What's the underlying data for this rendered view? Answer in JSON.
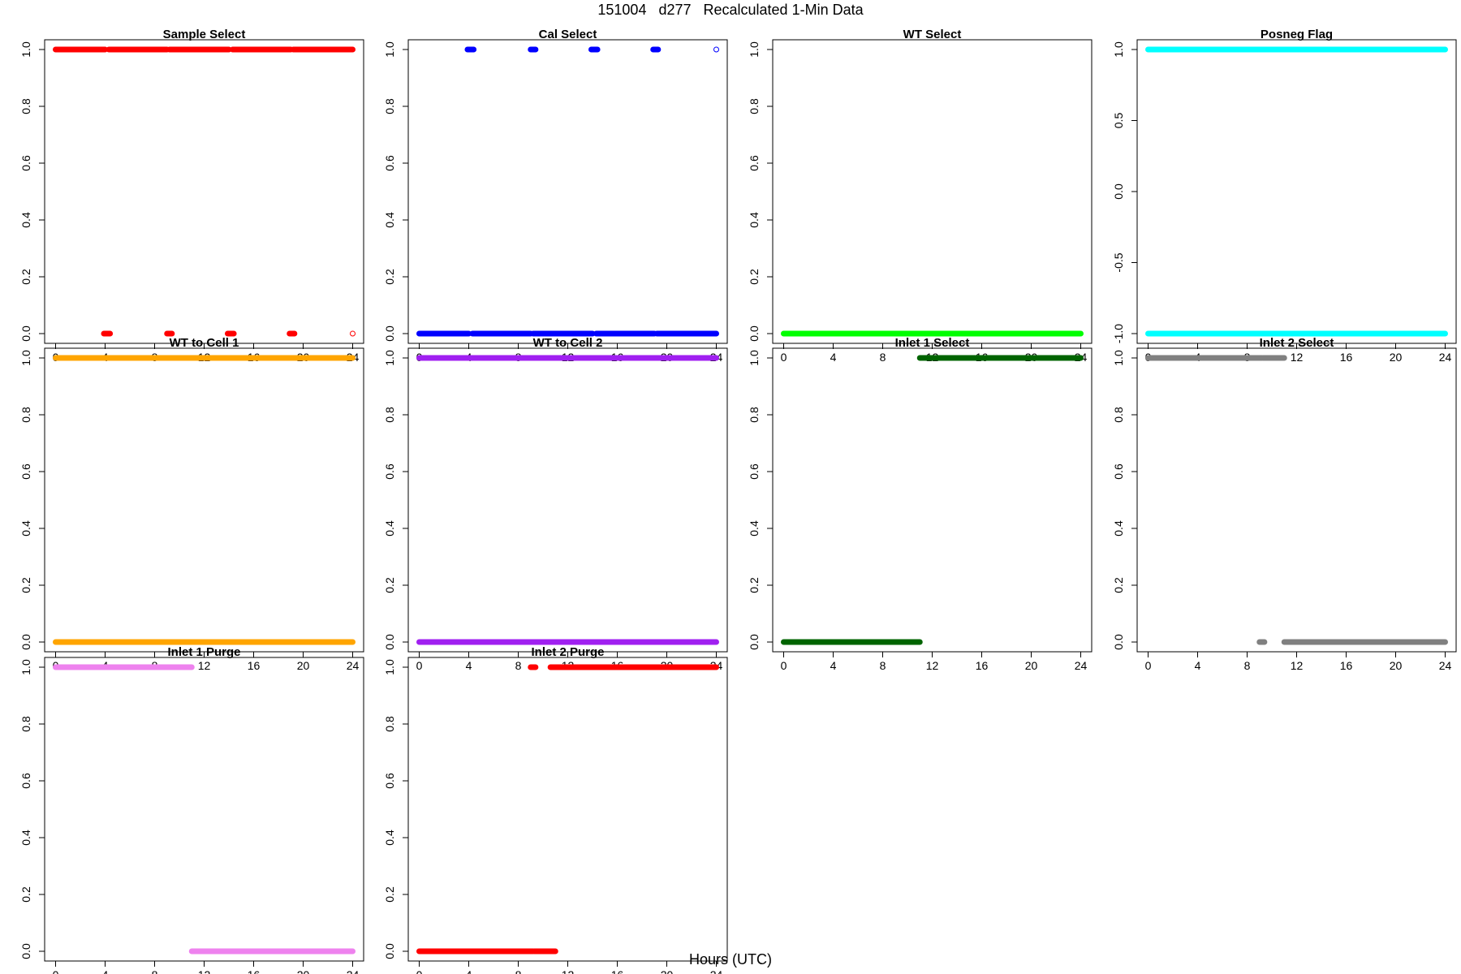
{
  "title": "151004   d277   Recalculated 1-Min Data",
  "xlabel": "Hours (UTC)",
  "chart_data": [
    {
      "type": "scatter",
      "title": "Sample Select",
      "color": "#ff0000",
      "xlim": [
        0,
        24
      ],
      "ylim": [
        0,
        1
      ],
      "xticks": [
        0,
        4,
        8,
        12,
        16,
        20,
        24
      ],
      "yticks": [
        0.0,
        0.2,
        0.4,
        0.6,
        0.8,
        1.0
      ],
      "ytick_labels": [
        "0.0",
        "0.2",
        "0.4",
        "0.6",
        "0.8",
        "1.0"
      ],
      "segments": [
        [
          0,
          4.0,
          1
        ],
        [
          4.3,
          9.0,
          1
        ],
        [
          9.2,
          14.0,
          1
        ],
        [
          14.3,
          19.0,
          1
        ],
        [
          19.2,
          24.0,
          1
        ],
        [
          3.9,
          4.4,
          0
        ],
        [
          9.0,
          9.4,
          0
        ],
        [
          13.9,
          14.4,
          0
        ],
        [
          18.9,
          19.3,
          0
        ]
      ],
      "points": [
        [
          24.0,
          0,
          "open"
        ]
      ]
    },
    {
      "type": "scatter",
      "title": "Cal Select",
      "color": "#0000ff",
      "xlim": [
        0,
        24
      ],
      "ylim": [
        0,
        1
      ],
      "xticks": [
        0,
        4,
        8,
        12,
        16,
        20,
        24
      ],
      "yticks": [
        0.0,
        0.2,
        0.4,
        0.6,
        0.8,
        1.0
      ],
      "ytick_labels": [
        "0.0",
        "0.2",
        "0.4",
        "0.6",
        "0.8",
        "1.0"
      ],
      "segments": [
        [
          0,
          4.0,
          0
        ],
        [
          4.3,
          9.0,
          0
        ],
        [
          9.2,
          14.0,
          0
        ],
        [
          14.3,
          19.0,
          0
        ],
        [
          19.2,
          24.0,
          0
        ],
        [
          3.9,
          4.4,
          1
        ],
        [
          9.0,
          9.4,
          1
        ],
        [
          13.9,
          14.4,
          1
        ],
        [
          18.9,
          19.3,
          1
        ]
      ],
      "points": [
        [
          24.0,
          1,
          "open"
        ]
      ]
    },
    {
      "type": "scatter",
      "title": "WT Select",
      "color": "#00ff00",
      "xlim": [
        0,
        24
      ],
      "ylim": [
        0,
        1
      ],
      "xticks": [
        0,
        4,
        8,
        12,
        16,
        20,
        24
      ],
      "yticks": [
        0.0,
        0.2,
        0.4,
        0.6,
        0.8,
        1.0
      ],
      "ytick_labels": [
        "0.0",
        "0.2",
        "0.4",
        "0.6",
        "0.8",
        "1.0"
      ],
      "segments": [
        [
          0,
          24.0,
          0
        ]
      ],
      "points": []
    },
    {
      "type": "scatter",
      "title": "Posneg Flag",
      "color": "#00ffff",
      "xlim": [
        0,
        24
      ],
      "ylim": [
        -1,
        1
      ],
      "xticks": [
        0,
        4,
        8,
        12,
        16,
        20,
        24
      ],
      "yticks": [
        -1.0,
        -0.5,
        0.0,
        0.5,
        1.0
      ],
      "ytick_labels": [
        "-1.0",
        "-0.5",
        "0.0",
        "0.5",
        "1.0"
      ],
      "segments": [
        [
          0,
          24.0,
          1
        ],
        [
          0,
          24.0,
          -1
        ]
      ],
      "points": []
    },
    {
      "type": "scatter",
      "title": "WT to Cell 1",
      "color": "#ffa500",
      "xlim": [
        0,
        24
      ],
      "ylim": [
        0,
        1
      ],
      "xticks": [
        0,
        4,
        8,
        12,
        16,
        20,
        24
      ],
      "yticks": [
        0.0,
        0.2,
        0.4,
        0.6,
        0.8,
        1.0
      ],
      "ytick_labels": [
        "0.0",
        "0.2",
        "0.4",
        "0.6",
        "0.8",
        "1.0"
      ],
      "segments": [
        [
          0,
          24.0,
          1
        ],
        [
          0,
          24.0,
          0
        ]
      ],
      "points": []
    },
    {
      "type": "scatter",
      "title": "WT to Cell 2",
      "color": "#a020f0",
      "xlim": [
        0,
        24
      ],
      "ylim": [
        0,
        1
      ],
      "xticks": [
        0,
        4,
        8,
        12,
        16,
        20,
        24
      ],
      "yticks": [
        0.0,
        0.2,
        0.4,
        0.6,
        0.8,
        1.0
      ],
      "ytick_labels": [
        "0.0",
        "0.2",
        "0.4",
        "0.6",
        "0.8",
        "1.0"
      ],
      "segments": [
        [
          0,
          24.0,
          1
        ],
        [
          0,
          24.0,
          0
        ]
      ],
      "points": []
    },
    {
      "type": "scatter",
      "title": "Inlet 1 Select",
      "color": "#006400",
      "xlim": [
        0,
        24
      ],
      "ylim": [
        0,
        1
      ],
      "xticks": [
        0,
        4,
        8,
        12,
        16,
        20,
        24
      ],
      "yticks": [
        0.0,
        0.2,
        0.4,
        0.6,
        0.8,
        1.0
      ],
      "ytick_labels": [
        "0.0",
        "0.2",
        "0.4",
        "0.6",
        "0.8",
        "1.0"
      ],
      "segments": [
        [
          0,
          11.0,
          0
        ],
        [
          11.0,
          24.0,
          1
        ]
      ],
      "points": []
    },
    {
      "type": "scatter",
      "title": "Inlet 2 Select",
      "color": "#808080",
      "xlim": [
        0,
        24
      ],
      "ylim": [
        0,
        1
      ],
      "xticks": [
        0,
        4,
        8,
        12,
        16,
        20,
        24
      ],
      "yticks": [
        0.0,
        0.2,
        0.4,
        0.6,
        0.8,
        1.0
      ],
      "ytick_labels": [
        "0.0",
        "0.2",
        "0.4",
        "0.6",
        "0.8",
        "1.0"
      ],
      "segments": [
        [
          0,
          9.2,
          1
        ],
        [
          9.3,
          11.0,
          1
        ],
        [
          9.0,
          9.4,
          0
        ],
        [
          11.0,
          24.0,
          0
        ]
      ],
      "points": []
    },
    {
      "type": "scatter",
      "title": "Inlet 1 Purge",
      "color": "#ee82ee",
      "xlim": [
        0,
        24
      ],
      "ylim": [
        0,
        1
      ],
      "xticks": [
        0,
        4,
        8,
        12,
        16,
        20,
        24
      ],
      "yticks": [
        0.0,
        0.2,
        0.4,
        0.6,
        0.8,
        1.0
      ],
      "ytick_labels": [
        "0.0",
        "0.2",
        "0.4",
        "0.6",
        "0.8",
        "1.0"
      ],
      "segments": [
        [
          0,
          11.0,
          1
        ],
        [
          11.0,
          24.0,
          0
        ]
      ],
      "points": []
    },
    {
      "type": "scatter",
      "title": "Inlet 2 Purge",
      "color": "#ff0000",
      "xlim": [
        0,
        24
      ],
      "ylim": [
        0,
        1
      ],
      "xticks": [
        0,
        4,
        8,
        12,
        16,
        20,
        24
      ],
      "yticks": [
        0.0,
        0.2,
        0.4,
        0.6,
        0.8,
        1.0
      ],
      "ytick_labels": [
        "0.0",
        "0.2",
        "0.4",
        "0.6",
        "0.8",
        "1.0"
      ],
      "segments": [
        [
          9.0,
          9.4,
          1
        ],
        [
          10.6,
          24.0,
          1
        ],
        [
          0,
          9.2,
          0
        ],
        [
          9.3,
          11.0,
          0
        ]
      ],
      "points": []
    }
  ]
}
